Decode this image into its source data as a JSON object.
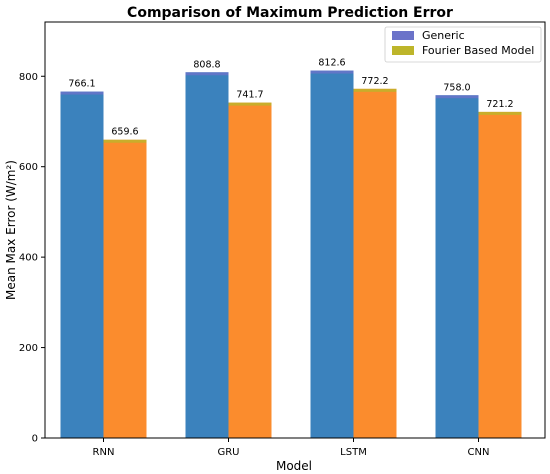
{
  "chart_data": {
    "type": "bar",
    "title": "Comparison of Maximum Prediction Error",
    "xlabel": "Model",
    "ylabel": "Mean Max Error (W/m²)",
    "categories": [
      "RNN",
      "GRU",
      "LSTM",
      "CNN"
    ],
    "series": [
      {
        "name": "Generic",
        "values": [
          766.1,
          808.8,
          812.6,
          758.0
        ],
        "labels": [
          "766.1",
          "808.8",
          "812.6",
          "758.0"
        ],
        "color": "#3b82bd",
        "legend_color": "#6b73c9"
      },
      {
        "name": "Fourier Based Model",
        "values": [
          659.6,
          741.7,
          772.2,
          721.2
        ],
        "labels": [
          "659.6",
          "741.7",
          "772.2",
          "721.2"
        ],
        "color": "#fb8c2d",
        "legend_color": "#bdb52a"
      }
    ],
    "ylim": [
      0,
      920
    ],
    "yticks": [
      0,
      200,
      400,
      600,
      800
    ],
    "grid": false,
    "legend_position": "top-right"
  }
}
